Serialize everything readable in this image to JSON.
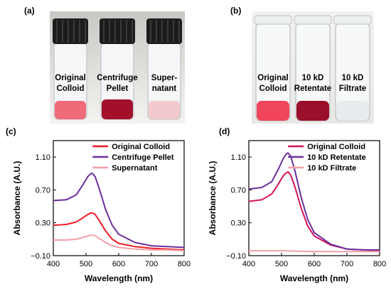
{
  "panels": {
    "a": {
      "label": "(a)",
      "vials": [
        {
          "line1": "Original",
          "line2": "Colloid",
          "liquid": "#f06a7a"
        },
        {
          "line1": "Centrifuge",
          "line2": "Pellet",
          "liquid": "#a2102a"
        },
        {
          "line1": "Super-",
          "line2": "natant",
          "liquid": "#f2c9cc"
        }
      ]
    },
    "b": {
      "label": "(b)",
      "vials": [
        {
          "line1": "Original",
          "line2": "Colloid",
          "liquid": "#f0455a"
        },
        {
          "line1": "10 kD",
          "line2": "Retentate",
          "liquid": "#9a0f2a"
        },
        {
          "line1": "10 kD",
          "line2": "Filtrate",
          "liquid": "#e8ecee"
        }
      ]
    },
    "c": {
      "label": "(c)"
    },
    "d": {
      "label": "(d)"
    }
  },
  "chart_data": [
    {
      "type": "line",
      "panel": "c",
      "xlabel": "Wavelength (nm)",
      "ylabel": "Absorbance (A.U.)",
      "xlim": [
        400,
        800
      ],
      "ylim": [
        -0.1,
        1.3
      ],
      "xticks": [
        400,
        500,
        600,
        700,
        800
      ],
      "yticks": [
        -0.1,
        0.3,
        0.7,
        1.1
      ],
      "ytick_labels": [
        "−0.10",
        "0.30",
        "0.70",
        "1.10"
      ],
      "legend_position": "top-right",
      "series": [
        {
          "name": "Original Colloid",
          "color": "#ee1c25",
          "x": [
            400,
            440,
            470,
            490,
            505,
            515,
            520,
            528,
            540,
            560,
            580,
            600,
            650,
            700,
            750,
            800
          ],
          "y": [
            0.27,
            0.28,
            0.31,
            0.36,
            0.4,
            0.42,
            0.42,
            0.4,
            0.33,
            0.2,
            0.1,
            0.05,
            0.01,
            -0.01,
            -0.02,
            -0.03
          ]
        },
        {
          "name": "Centrifuge Pellet",
          "color": "#6a2f9e",
          "x": [
            400,
            440,
            470,
            490,
            505,
            515,
            520,
            528,
            540,
            560,
            580,
            600,
            650,
            700,
            750,
            800
          ],
          "y": [
            0.57,
            0.58,
            0.64,
            0.76,
            0.86,
            0.9,
            0.9,
            0.86,
            0.72,
            0.46,
            0.27,
            0.16,
            0.06,
            0.02,
            0.01,
            0.0
          ]
        },
        {
          "name": "Supernatant",
          "color": "#f4a0a8",
          "x": [
            400,
            440,
            470,
            490,
            505,
            515,
            520,
            528,
            540,
            560,
            580,
            600,
            650,
            700,
            750,
            800
          ],
          "y": [
            0.09,
            0.09,
            0.1,
            0.12,
            0.14,
            0.15,
            0.15,
            0.14,
            0.11,
            0.06,
            0.02,
            0.0,
            -0.02,
            -0.03,
            -0.03,
            -0.04
          ]
        }
      ]
    },
    {
      "type": "line",
      "panel": "d",
      "xlabel": "Wavelength (nm)",
      "ylabel": "Absorbance (A.U.)",
      "xlim": [
        400,
        800
      ],
      "ylim": [
        -0.1,
        1.3
      ],
      "xticks": [
        400,
        500,
        600,
        700,
        800
      ],
      "yticks": [
        -0.1,
        0.3,
        0.7,
        1.1
      ],
      "ytick_labels": [
        "−0.10",
        "0.30",
        "0.70",
        "1.10"
      ],
      "legend_position": "top-right",
      "series": [
        {
          "name": "Original Colloid",
          "color": "#d6115a",
          "x": [
            400,
            440,
            470,
            490,
            505,
            515,
            520,
            528,
            540,
            560,
            580,
            600,
            650,
            700,
            750,
            800
          ],
          "y": [
            0.56,
            0.58,
            0.65,
            0.77,
            0.87,
            0.91,
            0.92,
            0.88,
            0.75,
            0.48,
            0.26,
            0.14,
            0.03,
            -0.02,
            -0.03,
            -0.04
          ]
        },
        {
          "name": "10 kD Retentate",
          "color": "#6a2f9e",
          "x": [
            400,
            440,
            470,
            490,
            505,
            515,
            520,
            528,
            540,
            560,
            580,
            600,
            650,
            700,
            750,
            800
          ],
          "y": [
            0.71,
            0.73,
            0.8,
            0.95,
            1.08,
            1.14,
            1.15,
            1.11,
            0.95,
            0.61,
            0.34,
            0.18,
            0.04,
            -0.02,
            -0.03,
            -0.03
          ]
        },
        {
          "name": "10 kD Filtrate",
          "color": "#f4a0a8",
          "x": [
            400,
            500,
            600,
            700,
            800
          ],
          "y": [
            -0.04,
            -0.04,
            -0.05,
            -0.05,
            -0.05
          ]
        }
      ]
    }
  ]
}
